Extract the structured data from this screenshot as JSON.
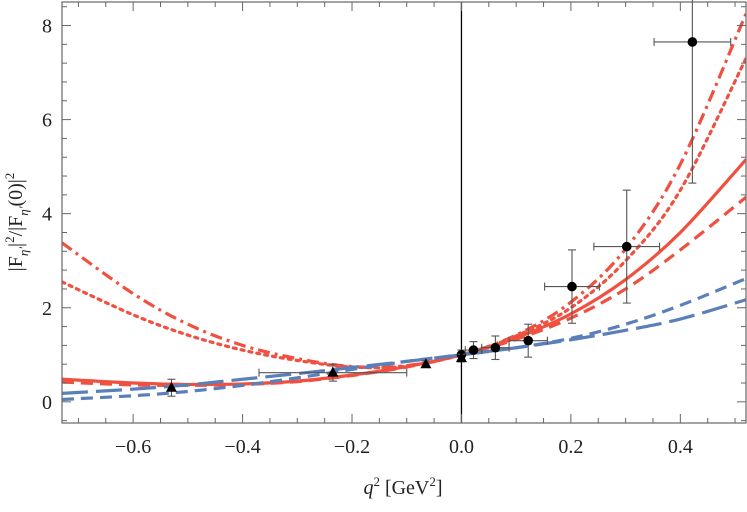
{
  "chart_data": {
    "type": "scatter",
    "xlabel": {
      "base": "q",
      "sup": "2",
      "unit_open": " [GeV",
      "unit_sup": "2",
      "unit_close": "]"
    },
    "ylabel": {
      "p1": "|F",
      "s1": "η'",
      "p2": "|",
      "sup1": "2",
      "p3": "/|F",
      "s2": "η'",
      "p4": "(0)|",
      "sup2": "2"
    },
    "xlim": [
      -0.73,
      0.52
    ],
    "ylim": [
      -0.45,
      8.5
    ],
    "xticks": [
      -0.6,
      -0.4,
      -0.2,
      0.0,
      0.2,
      0.4
    ],
    "xtick_labels": [
      "−0.6",
      "−0.4",
      "−0.2",
      "0.0",
      "0.2",
      "0.4"
    ],
    "yticks": [
      0,
      2,
      4,
      6,
      8
    ],
    "ytick_labels": [
      "0",
      "2",
      "4",
      "6",
      "8"
    ],
    "grid": false,
    "zero_line": true,
    "colors": {
      "red": "#f05040",
      "blue": "#5b7fb9",
      "points": "#000000",
      "errorbars": "#555555"
    },
    "curves": [
      {
        "color": "#f05040",
        "style": "solid",
        "x": [
          -0.73,
          -0.6,
          -0.5,
          -0.4,
          -0.3,
          -0.2,
          -0.1,
          0.0,
          0.1,
          0.2,
          0.3,
          0.4,
          0.52
        ],
        "y": [
          0.48,
          0.4,
          0.37,
          0.38,
          0.44,
          0.57,
          0.75,
          1.0,
          1.36,
          1.87,
          2.6,
          3.6,
          5.15
        ]
      },
      {
        "color": "#f05040",
        "style": "dash",
        "x": [
          -0.73,
          -0.6,
          -0.5,
          -0.4,
          -0.3,
          -0.2,
          -0.1,
          0.0,
          0.1,
          0.2,
          0.3,
          0.4,
          0.52
        ],
        "y": [
          0.42,
          0.36,
          0.35,
          0.37,
          0.43,
          0.56,
          0.74,
          1.0,
          1.33,
          1.78,
          2.4,
          3.23,
          4.35
        ]
      },
      {
        "color": "#f05040",
        "style": "dot",
        "x": [
          -0.73,
          -0.6,
          -0.5,
          -0.4,
          -0.3,
          -0.2,
          -0.1,
          0.0,
          0.1,
          0.2,
          0.3,
          0.4,
          0.52
        ],
        "y": [
          2.55,
          1.85,
          1.42,
          1.1,
          0.88,
          0.74,
          0.76,
          1.0,
          1.4,
          2.0,
          3.0,
          4.5,
          7.3
        ]
      },
      {
        "color": "#f05040",
        "style": "dashdot",
        "x": [
          -0.73,
          -0.6,
          -0.5,
          -0.4,
          -0.3,
          -0.2,
          -0.1,
          0.0,
          0.1,
          0.2,
          0.3,
          0.4,
          0.52
        ],
        "y": [
          3.38,
          2.3,
          1.65,
          1.2,
          0.92,
          0.75,
          0.77,
          1.0,
          1.42,
          2.12,
          3.25,
          5.05,
          8.25
        ]
      },
      {
        "color": "#5b7fb9",
        "style": "longdash",
        "x": [
          -0.73,
          -0.6,
          -0.5,
          -0.4,
          -0.3,
          -0.2,
          -0.1,
          0.0,
          0.1,
          0.2,
          0.3,
          0.4,
          0.52
        ],
        "y": [
          0.18,
          0.27,
          0.36,
          0.48,
          0.6,
          0.73,
          0.86,
          1.0,
          1.15,
          1.32,
          1.52,
          1.76,
          2.17
        ]
      },
      {
        "color": "#5b7fb9",
        "style": "dash",
        "x": [
          -0.73,
          -0.6,
          -0.5,
          -0.4,
          -0.3,
          -0.2,
          -0.1,
          0.0,
          0.1,
          0.2,
          0.3,
          0.4,
          0.52
        ],
        "y": [
          0.05,
          0.13,
          0.22,
          0.35,
          0.51,
          0.69,
          0.86,
          1.0,
          1.15,
          1.35,
          1.65,
          2.05,
          2.62
        ]
      }
    ],
    "points": [
      {
        "marker": "circle",
        "x": 0.0,
        "y": 1.0,
        "xerr": 0.0,
        "yerr": 0.1
      },
      {
        "marker": "circle",
        "x": 0.022,
        "y": 1.1,
        "xerr": 0.015,
        "yerr": 0.18
      },
      {
        "marker": "circle",
        "x": 0.062,
        "y": 1.15,
        "xerr": 0.025,
        "yerr": 0.25
      },
      {
        "marker": "circle",
        "x": 0.122,
        "y": 1.3,
        "xerr": 0.035,
        "yerr": 0.35
      },
      {
        "marker": "circle",
        "x": 0.202,
        "y": 2.45,
        "xerr": 0.05,
        "yerr": 0.78
      },
      {
        "marker": "circle",
        "x": 0.302,
        "y": 3.3,
        "xerr": 0.06,
        "yerr": 1.2
      },
      {
        "marker": "circle",
        "x": 0.422,
        "y": 7.65,
        "xerr": 0.07,
        "yerr": 3.0
      },
      {
        "marker": "triangle",
        "x": -0.53,
        "y": 0.3,
        "xerr": 0.0,
        "yerr": 0.18
      },
      {
        "marker": "triangle",
        "x": -0.235,
        "y": 0.62,
        "xerr": 0.135,
        "yerr": 0.18
      },
      {
        "marker": "triangle",
        "x": -0.065,
        "y": 0.8,
        "xerr": 0.0,
        "yerr": 0.07
      },
      {
        "marker": "triangle",
        "x": 0.0,
        "y": 0.93,
        "xerr": 0.0,
        "yerr": 0.08
      }
    ]
  }
}
